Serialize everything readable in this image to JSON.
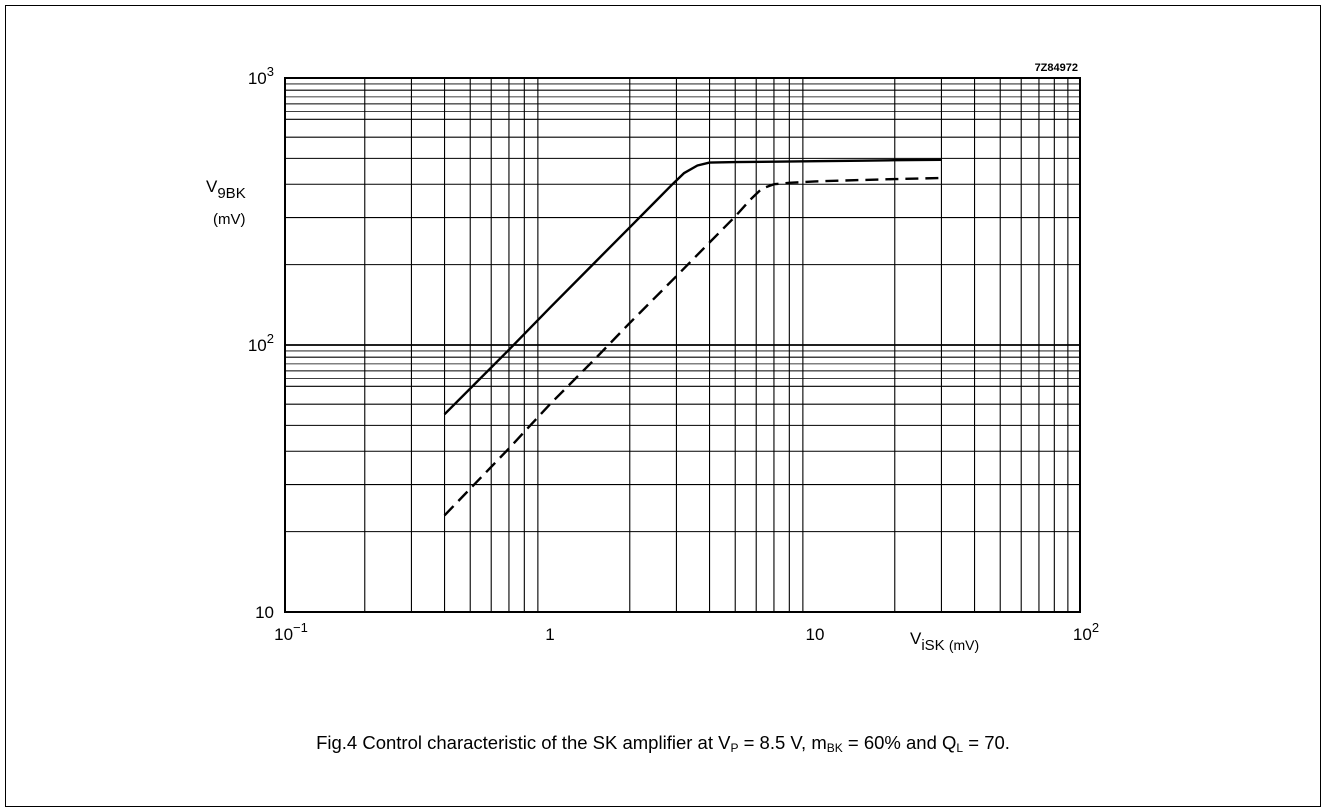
{
  "chart_data": {
    "type": "line",
    "code": "7Z84972",
    "xscale": "log",
    "yscale": "log",
    "xlim": [
      0.1,
      100
    ],
    "ylim": [
      10,
      1000
    ],
    "grid": true,
    "x_ticks": [
      {
        "value": 0.1,
        "base": "10",
        "exp": "−1"
      },
      {
        "value": 1,
        "base": "1",
        "exp": ""
      },
      {
        "value": 10,
        "base": "10",
        "exp": ""
      },
      {
        "value": 100,
        "base": "10",
        "exp": "2"
      }
    ],
    "y_ticks": [
      {
        "value": 10,
        "base": "10",
        "exp": ""
      },
      {
        "value": 100,
        "base": "10",
        "exp": "2"
      },
      {
        "value": 1000,
        "base": "10",
        "exp": "3"
      }
    ],
    "xlabel": {
      "main": "V",
      "sub": "iSK",
      "unit": "(mV)"
    },
    "ylabel": {
      "main": "V",
      "sub": "9BK",
      "unit": "(mV)"
    },
    "series": [
      {
        "style": "solid",
        "x": [
          0.4,
          0.7,
          1,
          1.5,
          2,
          2.5,
          2.9,
          3.2,
          3.6,
          4,
          5,
          7,
          10,
          15,
          20,
          30
        ],
        "y": [
          55,
          96,
          138,
          207,
          276,
          345,
          400,
          440,
          470,
          482,
          484,
          486,
          488,
          490,
          492,
          494
        ]
      },
      {
        "style": "dashed",
        "x": [
          0.4,
          0.7,
          1,
          1.5,
          2,
          3,
          4,
          5,
          5.7,
          6.3,
          7,
          8,
          10,
          15,
          20,
          30
        ],
        "y": [
          23,
          41,
          60,
          90,
          121,
          181,
          242,
          303,
          350,
          385,
          400,
          405,
          410,
          415,
          418,
          422
        ]
      }
    ]
  },
  "caption": {
    "prefix": "Fig.4  Control characteristic of the SK amplifier at V",
    "vp_sub": "P",
    "mid1": " = 8.5 V, m",
    "m_sub": "BK",
    "mid2": " = 60% and Q",
    "q_sub": "L",
    "suffix": " = 70."
  }
}
